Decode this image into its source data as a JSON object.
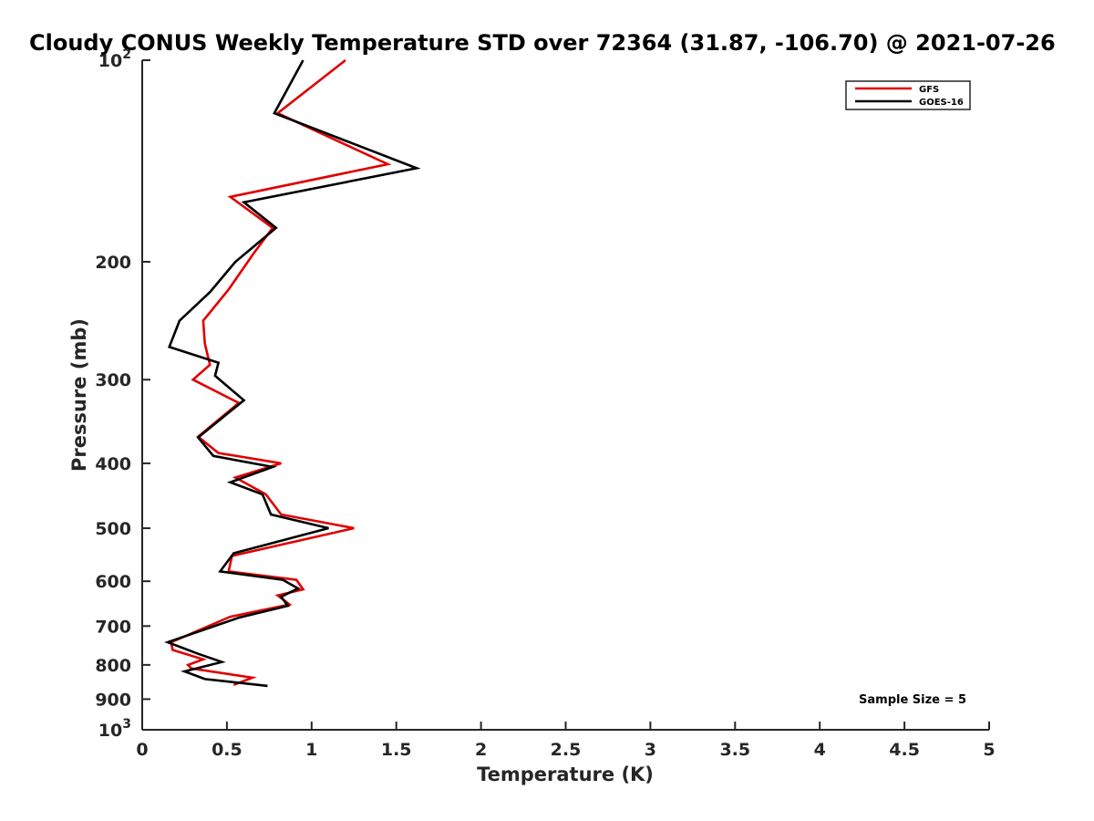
{
  "chart_data": {
    "type": "line",
    "title": "Cloudy CONUS Weekly Temperature STD over 72364 (31.87, -106.70) @ 2021-07-26",
    "xlabel": "Temperature (K)",
    "ylabel": "Pressure (mb)",
    "xlim": [
      0,
      5
    ],
    "ylim": [
      100,
      1000
    ],
    "yscale": "log",
    "y_reversed": true,
    "grid": false,
    "legend_position": "top-right",
    "x_ticks": [
      {
        "value": 0,
        "label": "0"
      },
      {
        "value": 0.5,
        "label": "0.5"
      },
      {
        "value": 1,
        "label": "1"
      },
      {
        "value": 1.5,
        "label": "1.5"
      },
      {
        "value": 2,
        "label": "2"
      },
      {
        "value": 2.5,
        "label": "2.5"
      },
      {
        "value": 3,
        "label": "3"
      },
      {
        "value": 3.5,
        "label": "3.5"
      },
      {
        "value": 4,
        "label": "4"
      },
      {
        "value": 4.5,
        "label": "4.5"
      },
      {
        "value": 5,
        "label": "5"
      }
    ],
    "y_ticks": [
      {
        "value": 100,
        "base": "10",
        "exp": "2"
      },
      {
        "value": 200,
        "base": "200",
        "exp": ""
      },
      {
        "value": 300,
        "base": "300",
        "exp": ""
      },
      {
        "value": 400,
        "base": "400",
        "exp": ""
      },
      {
        "value": 500,
        "base": "500",
        "exp": ""
      },
      {
        "value": 600,
        "base": "600",
        "exp": ""
      },
      {
        "value": 700,
        "base": "700",
        "exp": ""
      },
      {
        "value": 800,
        "base": "800",
        "exp": ""
      },
      {
        "value": 900,
        "base": "900",
        "exp": ""
      },
      {
        "value": 1000,
        "base": "10",
        "exp": "3"
      }
    ],
    "series": [
      {
        "name": "GFS",
        "color": "#e00000",
        "x": [
          1.2,
          0.8,
          1.45,
          0.52,
          0.77,
          0.66,
          0.51,
          0.36,
          0.37,
          0.4,
          0.3,
          0.57,
          0.33,
          0.45,
          0.82,
          0.55,
          0.73,
          0.82,
          1.25,
          0.53,
          0.51,
          0.91,
          0.95,
          0.8,
          0.87,
          0.52,
          0.17,
          0.18,
          0.36,
          0.27,
          0.29,
          0.65,
          0.54
        ],
        "y": [
          100,
          120,
          143,
          160,
          178,
          194,
          220,
          245,
          265,
          285,
          300,
          325,
          365,
          386,
          400,
          420,
          445,
          477,
          500,
          550,
          580,
          597,
          617,
          630,
          650,
          678,
          740,
          760,
          785,
          800,
          810,
          836,
          857
        ]
      },
      {
        "name": "GOES-16",
        "color": "#000000",
        "x": [
          0.95,
          0.78,
          1.62,
          0.6,
          0.79,
          0.55,
          0.4,
          0.22,
          0.16,
          0.45,
          0.43,
          0.6,
          0.33,
          0.42,
          0.77,
          0.52,
          0.71,
          0.76,
          1.1,
          0.54,
          0.46,
          0.83,
          0.92,
          0.82,
          0.86,
          0.57,
          0.15,
          0.33,
          0.47,
          0.25,
          0.37,
          0.74
        ],
        "y": [
          100,
          120,
          145,
          163,
          178,
          200,
          222,
          245,
          268,
          283,
          296,
          322,
          366,
          390,
          405,
          427,
          445,
          477,
          500,
          545,
          580,
          597,
          615,
          633,
          653,
          680,
          740,
          770,
          792,
          818,
          840,
          860
        ]
      }
    ],
    "annotation": "Sample Size = 5"
  }
}
